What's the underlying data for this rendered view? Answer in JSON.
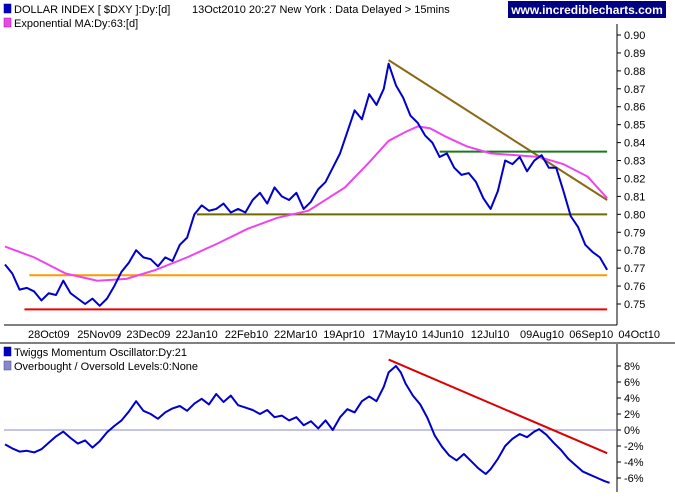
{
  "site_badge": "www.incrediblecharts.com",
  "colors": {
    "price": "#0000cc",
    "ema": "#ee44ee",
    "momentum": "#0000cc",
    "zero_line": "#8888cc",
    "trend_brown": "#8b6914",
    "support_green": "#1a7a1a",
    "support_olive": "#6b6b00",
    "support_orange": "#ff9900",
    "support_red": "#ee0000",
    "trend_red": "#dd0000",
    "badge_bg": "#000080"
  },
  "chart_data": [
    {
      "type": "line",
      "legend": [
        {
          "label": "DOLLAR INDEX [ $DXY ]:Dy:[d]",
          "color": "#0000cc",
          "icon": "blue-square-icon"
        },
        {
          "label": "Exponential MA:Dy:63:[d]",
          "color": "#ee44ee",
          "icon": "magenta-square-icon"
        }
      ],
      "header_info": "13Oct2010 20:27 New York : Data Delayed > 15mins",
      "x_tick_labels": [
        "28Oct09",
        "25Nov09",
        "23Dec09",
        "22Jan10",
        "22Feb10",
        "22Mar10",
        "19Apr10",
        "17May10",
        "14Jun10",
        "12Jul10",
        "09Aug10",
        "06Sep10",
        "04Oct10"
      ],
      "y_tick_labels": [
        "0.90",
        "0.89",
        "0.88",
        "0.87",
        "0.86",
        "0.85",
        "0.84",
        "0.83",
        "0.82",
        "0.81",
        "0.80",
        "0.79",
        "0.78",
        "0.77",
        "0.76",
        "0.75"
      ],
      "ylim": [
        0.745,
        0.905
      ],
      "x_domain": [
        0,
        250
      ],
      "series": [
        {
          "name": "DOLLAR INDEX [ $DXY ]",
          "points": [
            [
              0,
              0.772
            ],
            [
              3,
              0.767
            ],
            [
              6,
              0.758
            ],
            [
              9,
              0.759
            ],
            [
              12,
              0.757
            ],
            [
              15,
              0.752
            ],
            [
              18,
              0.756
            ],
            [
              21,
              0.755
            ],
            [
              24,
              0.763
            ],
            [
              27,
              0.756
            ],
            [
              30,
              0.753
            ],
            [
              33,
              0.75
            ],
            [
              36,
              0.753
            ],
            [
              39,
              0.749
            ],
            [
              42,
              0.753
            ],
            [
              45,
              0.76
            ],
            [
              48,
              0.768
            ],
            [
              51,
              0.773
            ],
            [
              54,
              0.78
            ],
            [
              57,
              0.776
            ],
            [
              60,
              0.775
            ],
            [
              63,
              0.771
            ],
            [
              66,
              0.776
            ],
            [
              69,
              0.774
            ],
            [
              72,
              0.783
            ],
            [
              75,
              0.787
            ],
            [
              78,
              0.8
            ],
            [
              81,
              0.805
            ],
            [
              84,
              0.802
            ],
            [
              87,
              0.803
            ],
            [
              90,
              0.806
            ],
            [
              93,
              0.801
            ],
            [
              96,
              0.803
            ],
            [
              99,
              0.801
            ],
            [
              102,
              0.808
            ],
            [
              105,
              0.812
            ],
            [
              108,
              0.806
            ],
            [
              111,
              0.815
            ],
            [
              114,
              0.81
            ],
            [
              117,
              0.808
            ],
            [
              120,
              0.812
            ],
            [
              123,
              0.803
            ],
            [
              126,
              0.807
            ],
            [
              129,
              0.814
            ],
            [
              132,
              0.818
            ],
            [
              135,
              0.826
            ],
            [
              138,
              0.834
            ],
            [
              141,
              0.846
            ],
            [
              144,
              0.858
            ],
            [
              147,
              0.853
            ],
            [
              150,
              0.867
            ],
            [
              153,
              0.861
            ],
            [
              156,
              0.87
            ],
            [
              158,
              0.884
            ],
            [
              161,
              0.872
            ],
            [
              164,
              0.865
            ],
            [
              167,
              0.855
            ],
            [
              170,
              0.851
            ],
            [
              173,
              0.844
            ],
            [
              176,
              0.84
            ],
            [
              179,
              0.832
            ],
            [
              182,
              0.834
            ],
            [
              185,
              0.826
            ],
            [
              188,
              0.822
            ],
            [
              191,
              0.823
            ],
            [
              194,
              0.818
            ],
            [
              197,
              0.809
            ],
            [
              200,
              0.803
            ],
            [
              203,
              0.813
            ],
            [
              206,
              0.83
            ],
            [
              209,
              0.828
            ],
            [
              212,
              0.832
            ],
            [
              215,
              0.824
            ],
            [
              218,
              0.83
            ],
            [
              221,
              0.833
            ],
            [
              224,
              0.826
            ],
            [
              227,
              0.826
            ],
            [
              230,
              0.813
            ],
            [
              233,
              0.799
            ],
            [
              236,
              0.793
            ],
            [
              239,
              0.783
            ],
            [
              242,
              0.779
            ],
            [
              245,
              0.776
            ],
            [
              248,
              0.769
            ]
          ]
        },
        {
          "name": "Exponential MA",
          "points": [
            [
              0,
              0.782
            ],
            [
              12,
              0.776
            ],
            [
              25,
              0.767
            ],
            [
              38,
              0.763
            ],
            [
              50,
              0.764
            ],
            [
              62,
              0.769
            ],
            [
              75,
              0.776
            ],
            [
              88,
              0.784
            ],
            [
              100,
              0.792
            ],
            [
              112,
              0.798
            ],
            [
              125,
              0.802
            ],
            [
              140,
              0.815
            ],
            [
              150,
              0.829
            ],
            [
              158,
              0.841
            ],
            [
              165,
              0.846
            ],
            [
              170,
              0.849
            ],
            [
              175,
              0.848
            ],
            [
              182,
              0.843
            ],
            [
              190,
              0.838
            ],
            [
              200,
              0.834
            ],
            [
              210,
              0.833
            ],
            [
              220,
              0.832
            ],
            [
              230,
              0.828
            ],
            [
              240,
              0.821
            ],
            [
              248,
              0.809
            ]
          ]
        }
      ],
      "reference_lines": [
        {
          "kind": "trendline",
          "color": "#8b6914",
          "from": [
            158,
            0.886
          ],
          "to": [
            248,
            0.808
          ]
        },
        {
          "kind": "horizontal",
          "color": "#1a7a1a",
          "y": 0.835,
          "x_from": 179,
          "x_to": 248
        },
        {
          "kind": "horizontal",
          "color": "#6b6b00",
          "y": 0.8,
          "x_from": 79,
          "x_to": 248
        },
        {
          "kind": "horizontal",
          "color": "#ff9900",
          "y": 0.766,
          "x_from": 10,
          "x_to": 248
        },
        {
          "kind": "horizontal",
          "color": "#ee0000",
          "y": 0.747,
          "x_from": 8,
          "x_to": 248
        }
      ]
    },
    {
      "type": "line",
      "legend": [
        {
          "label": "Twiggs Momentum Oscillator:Dy:21",
          "color": "#0000cc",
          "icon": "blue-square-icon"
        },
        {
          "label": "Overbought / Oversold Levels:0:None",
          "color": "#8888cc",
          "icon": "lavender-square-icon"
        }
      ],
      "y_tick_labels": [
        "8%",
        "6%",
        "4%",
        "2%",
        "0%",
        "-2%",
        "-4%",
        "-6%"
      ],
      "ylim": [
        -7.5,
        9.5
      ],
      "x_domain": [
        0,
        250
      ],
      "zero_line": 0,
      "series": [
        {
          "name": "Twiggs Momentum Oscillator",
          "points": [
            [
              0,
              -1.8
            ],
            [
              3,
              -2.3
            ],
            [
              6,
              -2.7
            ],
            [
              9,
              -2.6
            ],
            [
              12,
              -2.8
            ],
            [
              15,
              -2.4
            ],
            [
              18,
              -1.6
            ],
            [
              21,
              -0.8
            ],
            [
              24,
              -0.2
            ],
            [
              27,
              -1.0
            ],
            [
              30,
              -1.7
            ],
            [
              33,
              -1.3
            ],
            [
              36,
              -2.2
            ],
            [
              39,
              -1.4
            ],
            [
              42,
              -0.3
            ],
            [
              45,
              0.5
            ],
            [
              48,
              1.2
            ],
            [
              51,
              2.3
            ],
            [
              54,
              3.6
            ],
            [
              57,
              2.4
            ],
            [
              60,
              2.0
            ],
            [
              63,
              1.4
            ],
            [
              66,
              2.2
            ],
            [
              69,
              2.7
            ],
            [
              72,
              3.0
            ],
            [
              75,
              2.4
            ],
            [
              78,
              3.3
            ],
            [
              81,
              3.9
            ],
            [
              84,
              3.2
            ],
            [
              87,
              4.5
            ],
            [
              90,
              3.5
            ],
            [
              93,
              4.3
            ],
            [
              96,
              3.1
            ],
            [
              99,
              2.8
            ],
            [
              102,
              2.5
            ],
            [
              105,
              2.0
            ],
            [
              108,
              2.5
            ],
            [
              111,
              1.6
            ],
            [
              114,
              1.8
            ],
            [
              117,
              1.2
            ],
            [
              120,
              1.6
            ],
            [
              123,
              0.6
            ],
            [
              126,
              1.1
            ],
            [
              129,
              0.2
            ],
            [
              132,
              1.2
            ],
            [
              135,
              0.0
            ],
            [
              138,
              1.6
            ],
            [
              141,
              2.6
            ],
            [
              144,
              2.2
            ],
            [
              147,
              3.6
            ],
            [
              150,
              4.2
            ],
            [
              153,
              3.6
            ],
            [
              156,
              5.4
            ],
            [
              158,
              7.2
            ],
            [
              161,
              8.0
            ],
            [
              163,
              7.2
            ],
            [
              165,
              5.8
            ],
            [
              168,
              4.3
            ],
            [
              171,
              3.2
            ],
            [
              174,
              1.5
            ],
            [
              177,
              -0.7
            ],
            [
              180,
              -2.1
            ],
            [
              183,
              -3.2
            ],
            [
              186,
              -3.8
            ],
            [
              189,
              -3.0
            ],
            [
              192,
              -3.9
            ],
            [
              195,
              -4.8
            ],
            [
              198,
              -5.5
            ],
            [
              200,
              -4.9
            ],
            [
              203,
              -3.6
            ],
            [
              206,
              -2.0
            ],
            [
              209,
              -1.1
            ],
            [
              212,
              -0.5
            ],
            [
              215,
              -0.9
            ],
            [
              218,
              -0.2
            ],
            [
              220,
              0.1
            ],
            [
              223,
              -0.6
            ],
            [
              226,
              -1.6
            ],
            [
              229,
              -2.5
            ],
            [
              232,
              -3.6
            ],
            [
              235,
              -4.4
            ],
            [
              238,
              -5.2
            ],
            [
              241,
              -5.6
            ],
            [
              244,
              -6.0
            ],
            [
              247,
              -6.4
            ],
            [
              249,
              -6.6
            ]
          ]
        }
      ],
      "reference_lines": [
        {
          "kind": "trendline",
          "color": "#dd0000",
          "from": [
            158,
            8.8
          ],
          "to": [
            248,
            -2.9
          ]
        }
      ]
    }
  ]
}
